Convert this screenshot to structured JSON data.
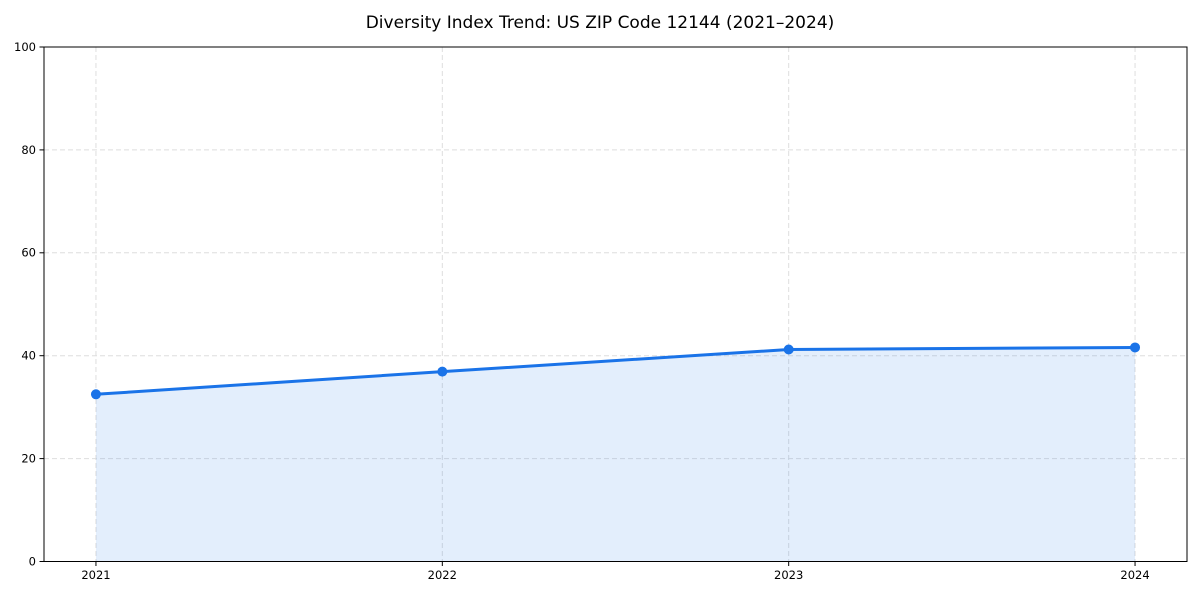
{
  "title": "Diversity Index Trend: US ZIP Code 12144 (2021–2024)",
  "chart_data": {
    "type": "area",
    "title": "Diversity Index Trend: US ZIP Code 12144 (2021–2024)",
    "x": [
      2021,
      2022,
      2023,
      2024
    ],
    "categories": [
      "2021",
      "2022",
      "2023",
      "2024"
    ],
    "series": [
      {
        "name": "Diversity Index",
        "values": [
          32.5,
          36.9,
          41.2,
          41.6
        ]
      }
    ],
    "xlabel": "",
    "ylabel": "",
    "xlim": [
      2020.85,
      2024.15
    ],
    "ylim": [
      0,
      100
    ],
    "yticks": [
      0,
      20,
      40,
      60,
      80,
      100
    ],
    "grid": true,
    "grid_style": "dashed",
    "legend": false,
    "colors": {
      "line": "#1a73e8",
      "marker": "#1a73e8",
      "fill": "#1a73e8",
      "fill_opacity": 0.12,
      "grid": "#dedede",
      "frame": "#000000",
      "tick_text": "#000000"
    },
    "line_width": 3,
    "marker_radius": 5
  }
}
